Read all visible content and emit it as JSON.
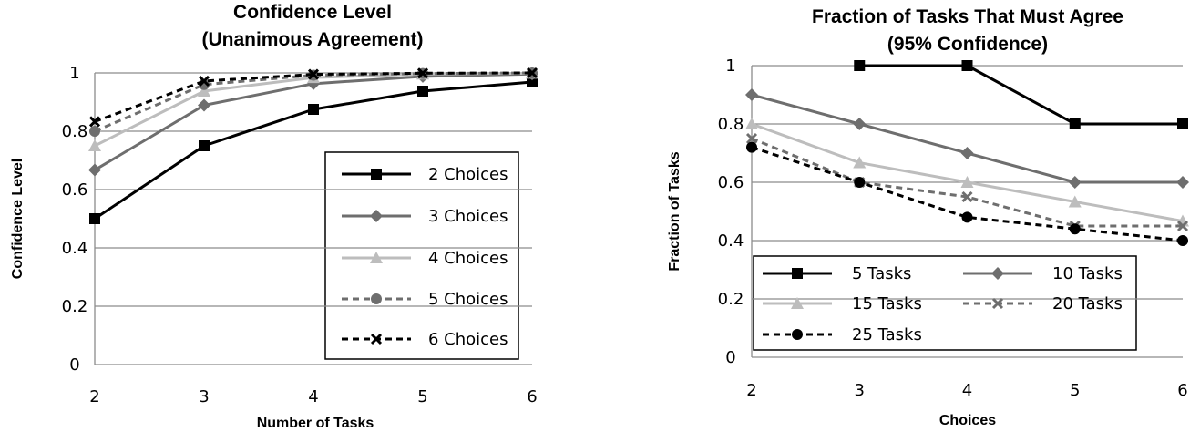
{
  "chart_data": [
    {
      "type": "line",
      "title": "Confidence Level",
      "subtitle": "(Unanimous Agreement)",
      "xlabel": "Number of Tasks",
      "ylabel": "Confidence Level",
      "x": [
        2,
        3,
        4,
        5,
        6
      ],
      "x_tick_labels": [
        "2",
        "3",
        "4",
        "5",
        "6"
      ],
      "y_tick_labels": [
        "0",
        "0.2",
        "0.4",
        "0.6",
        "0.8",
        "1"
      ],
      "ylim": [
        0,
        1
      ],
      "grid": "horizontal",
      "legend_position": "right",
      "series": [
        {
          "name": "2 Choices",
          "values": [
            0.5,
            0.75,
            0.875,
            0.9375,
            0.96875
          ],
          "color": "#000000",
          "dash": "solid",
          "marker": "square"
        },
        {
          "name": "3 Choices",
          "values": [
            0.667,
            0.889,
            0.963,
            0.988,
            0.996
          ],
          "color": "#6e6e6e",
          "dash": "solid",
          "marker": "diamond"
        },
        {
          "name": "4 Choices",
          "values": [
            0.75,
            0.9375,
            0.984,
            0.996,
            0.999
          ],
          "color": "#bdbdbd",
          "dash": "solid",
          "marker": "triangle"
        },
        {
          "name": "5 Choices",
          "values": [
            0.8,
            0.96,
            0.992,
            0.998,
            1.0
          ],
          "color": "#6e6e6e",
          "dash": "dashed",
          "marker": "circle"
        },
        {
          "name": "6 Choices",
          "values": [
            0.833,
            0.972,
            0.995,
            0.999,
            1.0
          ],
          "color": "#000000",
          "dash": "dashed",
          "marker": "x"
        }
      ]
    },
    {
      "type": "line",
      "title": "Fraction of Tasks That Must Agree",
      "subtitle": "(95% Confidence)",
      "xlabel": "Choices",
      "ylabel": "Fraction of Tasks",
      "x": [
        2,
        3,
        4,
        5,
        6
      ],
      "x_tick_labels": [
        "2",
        "3",
        "4",
        "5",
        "6"
      ],
      "y_tick_labels": [
        "0",
        "0.2",
        "0.4",
        "0.6",
        "0.8",
        "1"
      ],
      "ylim": [
        0,
        1
      ],
      "grid": "horizontal",
      "legend_position": "bottom-left",
      "series": [
        {
          "name": "5 Tasks",
          "values": [
            null,
            1.0,
            1.0,
            0.8,
            0.8
          ],
          "color": "#000000",
          "dash": "solid",
          "marker": "square"
        },
        {
          "name": "10 Tasks",
          "values": [
            0.9,
            0.8,
            0.7,
            0.6,
            0.6
          ],
          "color": "#6e6e6e",
          "dash": "solid",
          "marker": "diamond"
        },
        {
          "name": "15 Tasks",
          "values": [
            0.8,
            0.667,
            0.6,
            0.533,
            0.467
          ],
          "color": "#bdbdbd",
          "dash": "solid",
          "marker": "triangle"
        },
        {
          "name": "20 Tasks",
          "values": [
            0.75,
            0.6,
            0.55,
            0.45,
            0.45
          ],
          "color": "#6e6e6e",
          "dash": "dashed",
          "marker": "x"
        },
        {
          "name": "25 Tasks",
          "values": [
            0.72,
            0.6,
            0.48,
            0.44,
            0.4
          ],
          "color": "#000000",
          "dash": "dashed",
          "marker": "circle"
        }
      ]
    }
  ]
}
